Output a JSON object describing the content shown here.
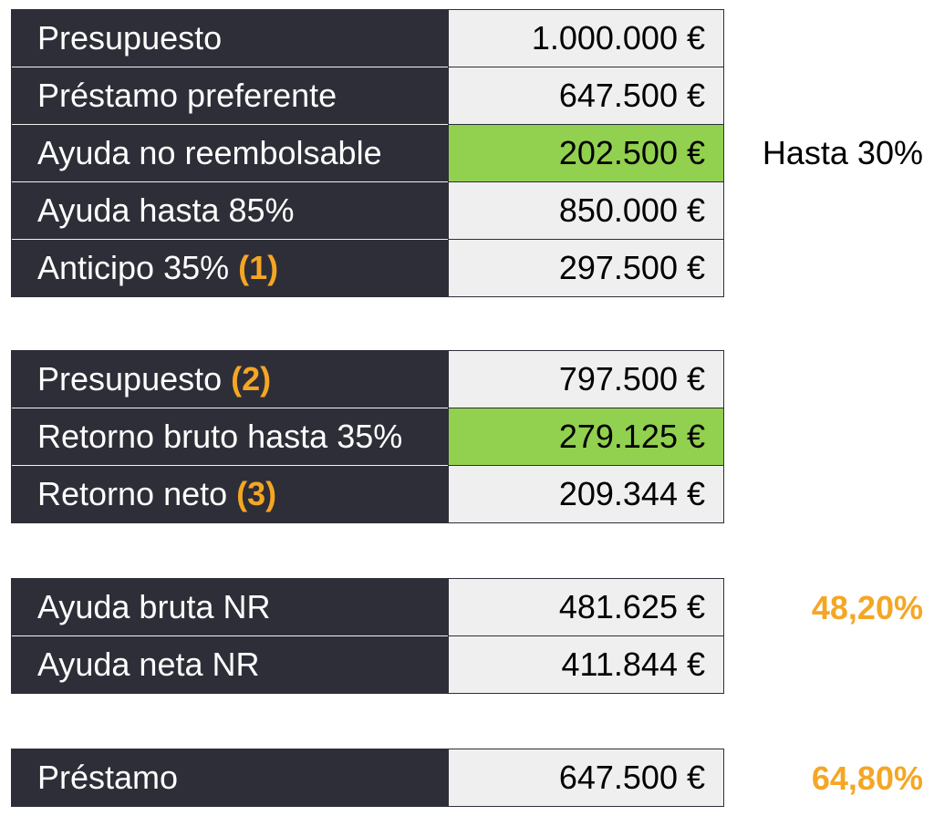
{
  "table1": {
    "rows": [
      {
        "label": "Presupuesto",
        "note": "",
        "value": "1.000.000 €",
        "highlight": false
      },
      {
        "label": "Préstamo preferente",
        "note": "",
        "value": "647.500 €",
        "highlight": false
      },
      {
        "label": "Ayuda no reembolsable",
        "note": "",
        "value": "202.500 €",
        "highlight": true
      },
      {
        "label": "Ayuda hasta 85%",
        "note": "",
        "value": "850.000 €",
        "highlight": false
      },
      {
        "label": "Anticipo 35%",
        "note": "(1)",
        "value": "297.500 €",
        "highlight": false
      }
    ],
    "side_note": "Hasta 30%"
  },
  "table2": {
    "rows": [
      {
        "label": "Presupuesto",
        "note": "(2)",
        "value": "797.500 €",
        "highlight": false
      },
      {
        "label": "Retorno bruto hasta 35%",
        "note": "",
        "value": "279.125 €",
        "highlight": true
      },
      {
        "label": "Retorno neto",
        "note": "(3)",
        "value": "209.344 €",
        "highlight": false
      }
    ]
  },
  "table3": {
    "rows": [
      {
        "label": "Ayuda bruta NR",
        "note": "",
        "value": "481.625 €",
        "highlight": false
      },
      {
        "label": "Ayuda neta NR",
        "note": "",
        "value": "411.844 €",
        "highlight": false
      }
    ],
    "side_percent": "48,20%"
  },
  "table4": {
    "rows": [
      {
        "label": "Préstamo",
        "note": "",
        "value": "647.500 €",
        "highlight": false
      }
    ],
    "side_percent": "64,80%"
  },
  "colors": {
    "label_bg": "#2e2e38",
    "value_bg": "#efefef",
    "highlight_bg": "#92d050",
    "accent_orange": "#f5a623"
  }
}
